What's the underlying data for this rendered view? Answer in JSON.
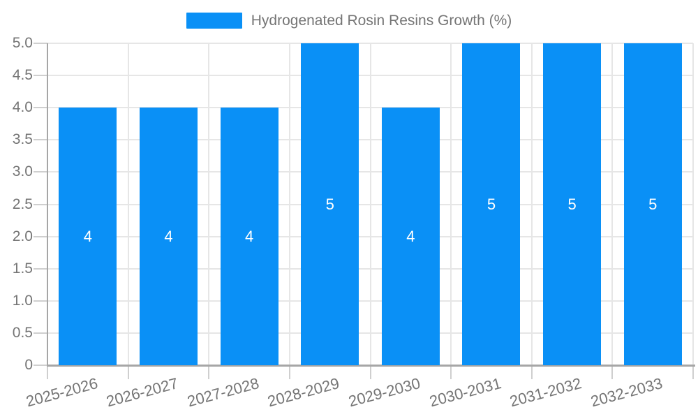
{
  "legend": {
    "label": "Hydrogenated Rosin Resins Growth (%)"
  },
  "colors": {
    "bar": "#0a90f6",
    "text": "#757575",
    "axis": "#a6a6a6",
    "grid": "#e6e6e6",
    "tick": "#cfcfcf",
    "value_label": "#ffffff"
  },
  "chart_data": {
    "type": "bar",
    "categories": [
      "2025-2026",
      "2026-2027",
      "2027-2028",
      "2028-2029",
      "2029-2030",
      "2030-2031",
      "2031-2032",
      "2032-2033"
    ],
    "values": [
      4,
      4,
      4,
      5,
      4,
      5,
      5,
      5
    ],
    "title": "",
    "xlabel": "",
    "ylabel": "",
    "legend": "Hydrogenated Rosin Resins Growth (%)",
    "legend_position": "top-center",
    "ylim": [
      0,
      5
    ],
    "grid": true,
    "show_value_labels": true,
    "yticks": [
      {
        "value": 0,
        "label": "0"
      },
      {
        "value": 0.5,
        "label": "0.5"
      },
      {
        "value": 1,
        "label": "1.0"
      },
      {
        "value": 1.5,
        "label": "1.5"
      },
      {
        "value": 2,
        "label": "2.0"
      },
      {
        "value": 2.5,
        "label": "2.5"
      },
      {
        "value": 3,
        "label": "3.0"
      },
      {
        "value": 3.5,
        "label": "3.5"
      },
      {
        "value": 4,
        "label": "4.0"
      },
      {
        "value": 4.5,
        "label": "4.5"
      },
      {
        "value": 5,
        "label": "5.0"
      }
    ]
  }
}
